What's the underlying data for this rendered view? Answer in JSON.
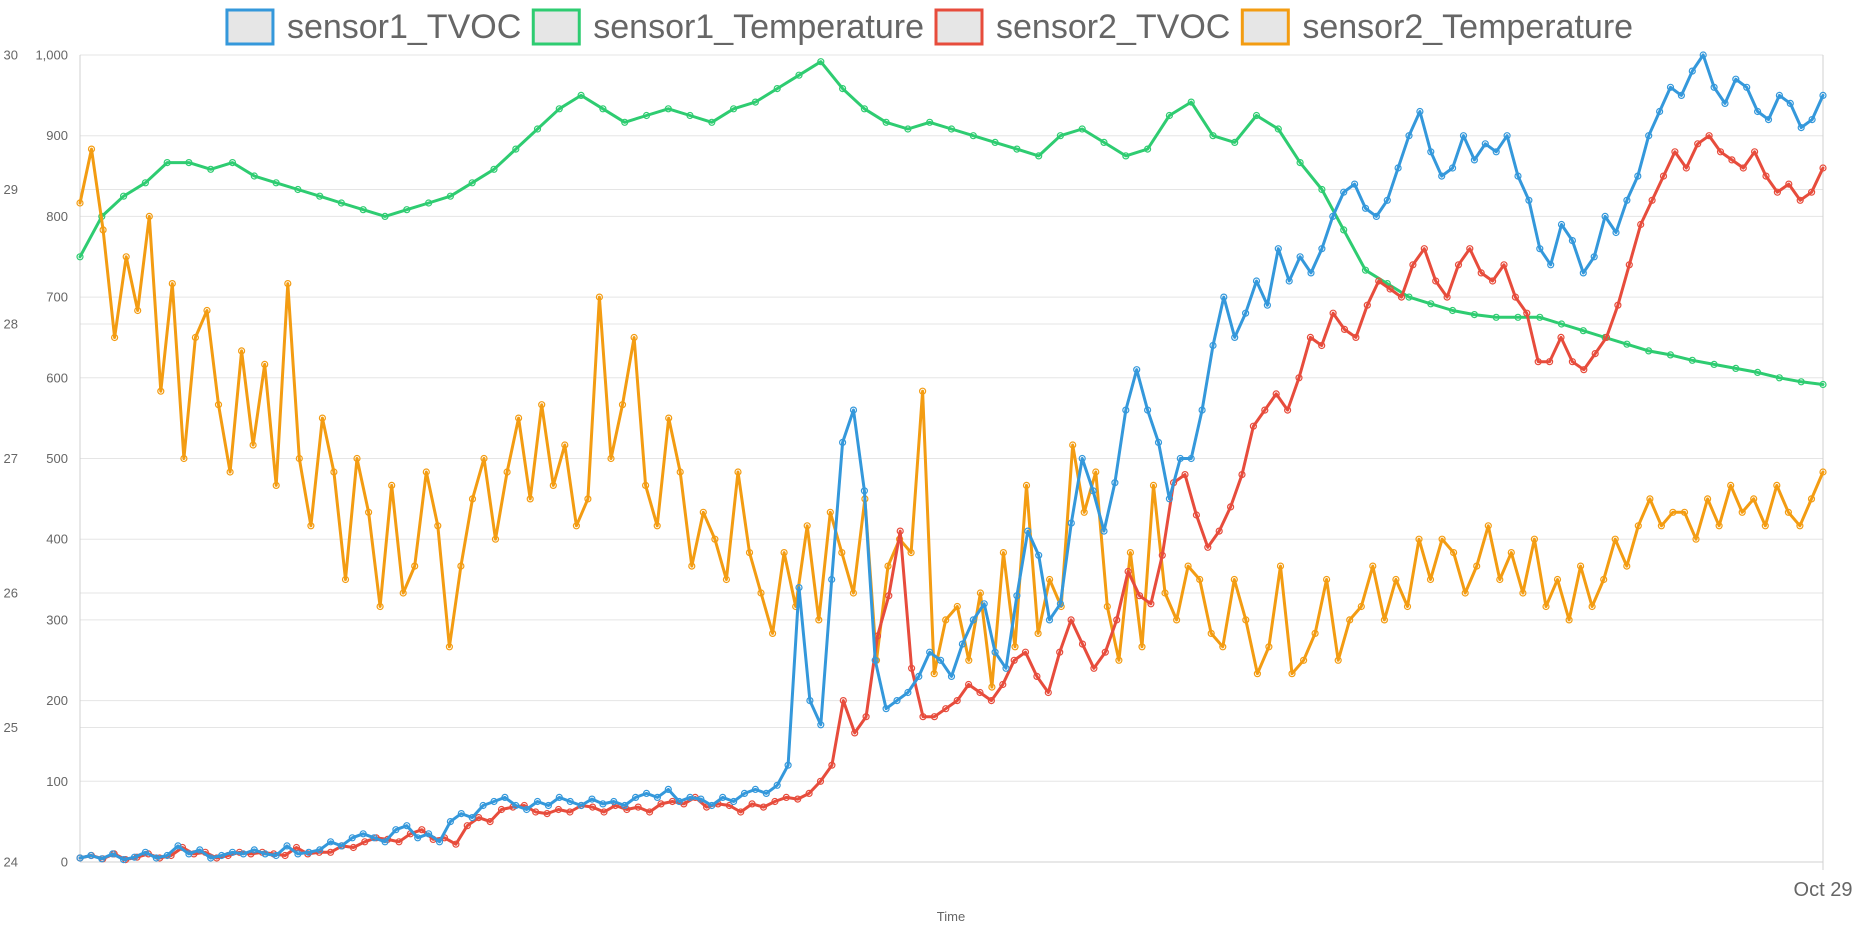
{
  "chart_data": {
    "type": "line",
    "title": "",
    "xlabel": "Time",
    "x_tick_labels": [
      "Oct 29"
    ],
    "y_left": {
      "ticks": [
        0,
        100,
        200,
        300,
        400,
        500,
        600,
        700,
        800,
        900,
        1000
      ],
      "tick_labels": [
        "0",
        "100",
        "200",
        "300",
        "400",
        "500",
        "600",
        "700",
        "800",
        "900",
        "1,000"
      ],
      "ylim": [
        0,
        1000
      ]
    },
    "y_left_outer": {
      "ticks": [
        24,
        25,
        26,
        27,
        28,
        29,
        30
      ],
      "tick_labels": [
        "24",
        "25",
        "26",
        "27",
        "28",
        "29",
        "30"
      ],
      "ylim": [
        24,
        30
      ]
    },
    "legend_position": "top",
    "series": [
      {
        "name": "sensor1_TVOC",
        "axis": "left",
        "color": "#3498db",
        "values": [
          5,
          8,
          4,
          10,
          3,
          6,
          12,
          5,
          8,
          20,
          10,
          15,
          5,
          8,
          12,
          10,
          15,
          10,
          8,
          20,
          10,
          12,
          15,
          25,
          20,
          30,
          35,
          30,
          25,
          40,
          45,
          30,
          35,
          25,
          50,
          60,
          55,
          70,
          75,
          80,
          70,
          65,
          75,
          70,
          80,
          75,
          70,
          78,
          72,
          75,
          70,
          80,
          85,
          80,
          90,
          75,
          80,
          78,
          70,
          80,
          75,
          85,
          90,
          85,
          95,
          120,
          340,
          200,
          170,
          350,
          520,
          560,
          460,
          250,
          190,
          200,
          210,
          230,
          260,
          250,
          230,
          270,
          300,
          320,
          260,
          240,
          330,
          410,
          380,
          300,
          320,
          420,
          500,
          460,
          410,
          470,
          560,
          610,
          560,
          520,
          450,
          500,
          500,
          560,
          640,
          700,
          650,
          680,
          720,
          690,
          760,
          720,
          750,
          730,
          760,
          800,
          830,
          840,
          810,
          800,
          820,
          860,
          900,
          930,
          880,
          850,
          860,
          900,
          870,
          890,
          880,
          900,
          850,
          820,
          760,
          740,
          790,
          770,
          730,
          750,
          800,
          780,
          820,
          850,
          900,
          930,
          960,
          950,
          980,
          1000,
          960,
          940,
          970,
          960,
          930,
          920,
          950,
          940,
          910,
          920,
          950
        ],
        "reading_note": "values read from the blue line at evenly spaced times"
      },
      {
        "name": "sensor1_Temperature",
        "axis": "left_outer",
        "color": "#2ecc71",
        "values": [
          28.5,
          28.8,
          28.95,
          29.05,
          29.2,
          29.2,
          29.15,
          29.2,
          29.1,
          29.05,
          29.0,
          28.95,
          28.9,
          28.85,
          28.8,
          28.85,
          28.9,
          28.95,
          29.05,
          29.15,
          29.3,
          29.45,
          29.6,
          29.7,
          29.6,
          29.5,
          29.55,
          29.6,
          29.55,
          29.5,
          29.6,
          29.65,
          29.75,
          29.85,
          29.95,
          29.75,
          29.6,
          29.5,
          29.45,
          29.5,
          29.45,
          29.4,
          29.35,
          29.3,
          29.25,
          29.4,
          29.45,
          29.35,
          29.25,
          29.3,
          29.55,
          29.65,
          29.4,
          29.35,
          29.55,
          29.45,
          29.2,
          29.0,
          28.7,
          28.4,
          28.3,
          28.2,
          28.15,
          28.1,
          28.07,
          28.05,
          28.05,
          28.05,
          28.0,
          27.95,
          27.9,
          27.85,
          27.8,
          27.77,
          27.73,
          27.7,
          27.67,
          27.64,
          27.6,
          27.57,
          27.55
        ],
        "reading_note": "temperature in degrees, read against the outer left axis (24–30)"
      },
      {
        "name": "sensor2_TVOC",
        "axis": "left",
        "color": "#e74c3c",
        "values": [
          5,
          8,
          4,
          10,
          3,
          6,
          10,
          5,
          8,
          18,
          10,
          12,
          5,
          8,
          12,
          10,
          12,
          10,
          8,
          18,
          10,
          12,
          12,
          20,
          18,
          25,
          30,
          28,
          25,
          35,
          40,
          28,
          30,
          22,
          45,
          55,
          50,
          65,
          68,
          70,
          62,
          60,
          65,
          62,
          70,
          68,
          62,
          70,
          65,
          68,
          62,
          72,
          75,
          72,
          80,
          68,
          72,
          70,
          62,
          72,
          68,
          75,
          80,
          78,
          85,
          100,
          120,
          200,
          160,
          180,
          280,
          330,
          410,
          240,
          180,
          180,
          190,
          200,
          220,
          210,
          200,
          220,
          250,
          260,
          230,
          210,
          260,
          300,
          270,
          240,
          260,
          300,
          360,
          330,
          320,
          380,
          470,
          480,
          430,
          390,
          410,
          440,
          480,
          540,
          560,
          580,
          560,
          600,
          650,
          640,
          680,
          660,
          650,
          690,
          720,
          710,
          700,
          740,
          760,
          720,
          700,
          740,
          760,
          730,
          720,
          740,
          700,
          680,
          620,
          620,
          650,
          620,
          610,
          630,
          650,
          690,
          740,
          790,
          820,
          850,
          880,
          860,
          890,
          900,
          880,
          870,
          860,
          880,
          850,
          830,
          840,
          820,
          830,
          860
        ]
      },
      {
        "name": "sensor2_Temperature",
        "axis": "left_outer",
        "color": "#f39c12",
        "values": [
          28.9,
          29.3,
          28.7,
          27.9,
          28.5,
          28.1,
          28.8,
          27.5,
          28.3,
          27.0,
          27.9,
          28.1,
          27.4,
          26.9,
          27.8,
          27.1,
          27.7,
          26.8,
          28.3,
          27.0,
          26.5,
          27.3,
          26.9,
          26.1,
          27.0,
          26.6,
          25.9,
          26.8,
          26.0,
          26.2,
          26.9,
          26.5,
          25.6,
          26.2,
          26.7,
          27.0,
          26.4,
          26.9,
          27.3,
          26.7,
          27.4,
          26.8,
          27.1,
          26.5,
          26.7,
          28.2,
          27.0,
          27.4,
          27.9,
          26.8,
          26.5,
          27.3,
          26.9,
          26.2,
          26.6,
          26.4,
          26.1,
          26.9,
          26.3,
          26.0,
          25.7,
          26.3,
          25.9,
          26.5,
          25.8,
          26.6,
          26.3,
          26.0,
          26.7,
          25.5,
          26.2,
          26.4,
          26.3,
          27.5,
          25.4,
          25.8,
          25.9,
          25.5,
          26.0,
          25.3,
          26.3,
          25.6,
          26.8,
          25.7,
          26.1,
          25.9,
          27.1,
          26.6,
          26.9,
          25.9,
          25.5,
          26.3,
          25.6,
          26.8,
          26.0,
          25.8,
          26.2,
          26.1,
          25.7,
          25.6,
          26.1,
          25.8,
          25.4,
          25.6,
          26.2,
          25.4,
          25.5,
          25.7,
          26.1,
          25.5,
          25.8,
          25.9,
          26.2,
          25.8,
          26.1,
          25.9,
          26.4,
          26.1,
          26.4,
          26.3,
          26.0,
          26.2,
          26.5,
          26.1,
          26.3,
          26.0,
          26.4,
          25.9,
          26.1,
          25.8,
          26.2,
          25.9,
          26.1,
          26.4,
          26.2,
          26.5,
          26.7,
          26.5,
          26.6,
          26.6,
          26.4,
          26.7,
          26.5,
          26.8,
          26.6,
          26.7,
          26.5,
          26.8,
          26.6,
          26.5,
          26.7,
          26.9
        ]
      }
    ]
  }
}
